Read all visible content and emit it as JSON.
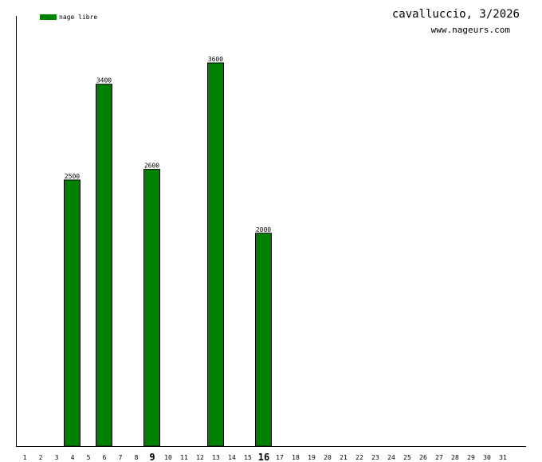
{
  "title": "cavalluccio, 3/2026",
  "subtitle": "www.nageurs.com",
  "chart_data": {
    "type": "bar",
    "title": "cavalluccio, 3/2026",
    "categories": [
      "1",
      "2",
      "3",
      "4",
      "5",
      "6",
      "7",
      "8",
      "9",
      "10",
      "11",
      "12",
      "13",
      "14",
      "15",
      "16",
      "17",
      "18",
      "19",
      "20",
      "21",
      "22",
      "23",
      "24",
      "25",
      "26",
      "27",
      "28",
      "29",
      "30",
      "31"
    ],
    "highlighted_ticks": [
      "9",
      "16"
    ],
    "series": [
      {
        "name": "nage libre",
        "color": "#008000",
        "values": [
          0,
          0,
          0,
          2500,
          0,
          3400,
          0,
          0,
          2600,
          0,
          0,
          0,
          3600,
          0,
          0,
          2000,
          0,
          0,
          0,
          0,
          0,
          0,
          0,
          0,
          0,
          0,
          0,
          0,
          0,
          0,
          0
        ]
      }
    ],
    "ylim": [
      0,
      3600
    ],
    "legend": "top-left",
    "grid": false
  }
}
